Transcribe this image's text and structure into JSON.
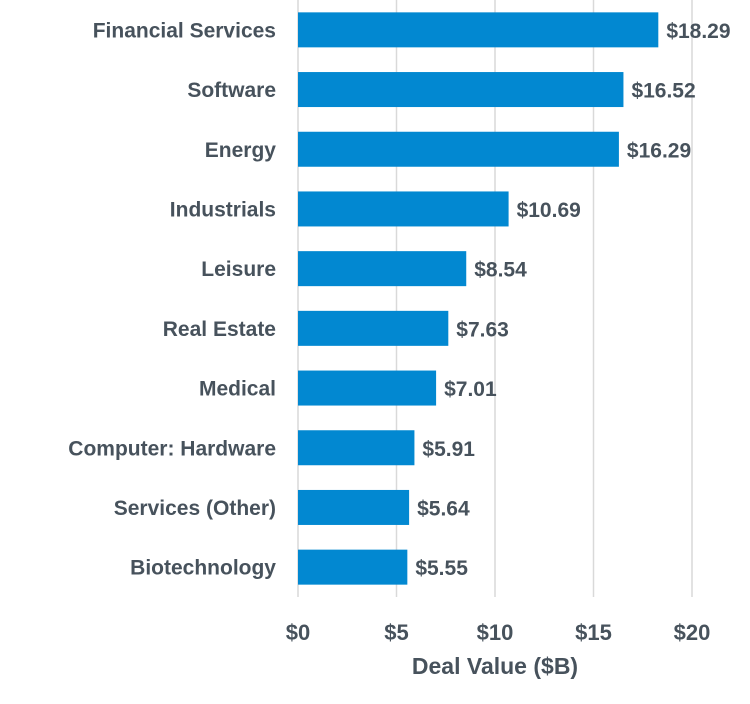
{
  "chart_data": {
    "type": "bar",
    "orientation": "horizontal",
    "categories": [
      "Financial Services",
      "Software",
      "Energy",
      "Industrials",
      "Leisure",
      "Real Estate",
      "Medical",
      "Computer: Hardware",
      "Services (Other)",
      "Biotechnology"
    ],
    "values": [
      18.29,
      16.52,
      16.29,
      10.69,
      8.54,
      7.63,
      7.01,
      5.91,
      5.64,
      5.55
    ],
    "data_labels": [
      "$18.29",
      "$16.52",
      "$16.29",
      "$10.69",
      "$8.54",
      "$7.63",
      "$7.01",
      "$5.91",
      "$5.64",
      "$5.55"
    ],
    "title": "",
    "xlabel": "Deal Value ($B)",
    "ylabel": "",
    "xlim": [
      0,
      20
    ],
    "xticks": [
      0,
      5,
      10,
      15,
      20
    ],
    "xtick_labels": [
      "$0",
      "$5",
      "$10",
      "$15",
      "$20"
    ],
    "grid": "vertical",
    "legend": "none",
    "colors": {
      "bar": "#0288D1",
      "text": "#47525c",
      "grid": "#d9d9d9"
    }
  }
}
